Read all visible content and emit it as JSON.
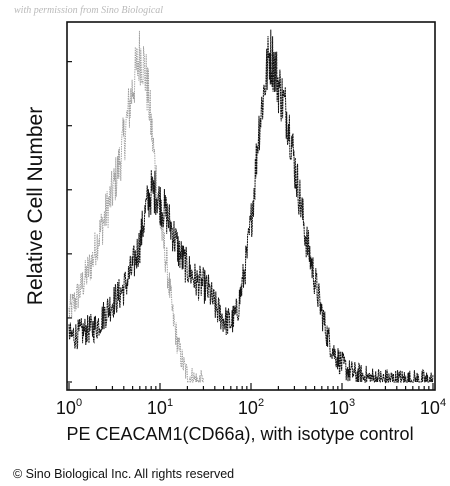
{
  "watermark": "with permission from Sino Biological",
  "copyright": "© Sino Biological Inc. All rights reserved",
  "chart_data": {
    "type": "area",
    "title": "",
    "xlabel": "PE CEACAM1(CD66a), with isotype control",
    "ylabel": "Relative Cell Number",
    "x_scale": "log",
    "xlim": [
      1,
      10000
    ],
    "ylim": [
      0,
      1
    ],
    "x_ticks": [
      {
        "base": "10",
        "exp": "0",
        "value": 1
      },
      {
        "base": "10",
        "exp": "1",
        "value": 10
      },
      {
        "base": "10",
        "exp": "2",
        "value": 100
      },
      {
        "base": "10",
        "exp": "3",
        "value": 1000
      },
      {
        "base": "10",
        "exp": "4",
        "value": 10000
      }
    ],
    "y_ticks_labeled": false,
    "grid": false,
    "legend": "none",
    "series": [
      {
        "role": "isotype control",
        "color": "#9a9a9a",
        "x": [
          1.0,
          1.2,
          1.5,
          1.8,
          2.0,
          2.5,
          3.0,
          3.5,
          4.0,
          4.5,
          5.0,
          5.5,
          6.0,
          6.5,
          7.0,
          7.5,
          8.0,
          9.0,
          10.0,
          11.0,
          12.0,
          13.0,
          14.0,
          16.0,
          18.0,
          20.0,
          23.0,
          26.0,
          30.0
        ],
        "y": [
          0.2,
          0.24,
          0.3,
          0.35,
          0.4,
          0.48,
          0.55,
          0.62,
          0.7,
          0.78,
          0.85,
          0.9,
          0.95,
          0.93,
          0.88,
          0.82,
          0.74,
          0.6,
          0.47,
          0.4,
          0.33,
          0.25,
          0.18,
          0.1,
          0.05,
          0.02,
          0.01,
          0.0,
          0.0
        ]
      },
      {
        "role": "PE CEACAM1(CD66a)",
        "color": "#111111",
        "x": [
          1.0,
          1.3,
          1.6,
          2.0,
          2.5,
          3.0,
          3.5,
          4.0,
          5.0,
          6.0,
          7.0,
          8.0,
          9.0,
          10.0,
          11.0,
          12.0,
          14.0,
          16.0,
          18.0,
          20.0,
          25.0,
          30.0,
          35.0,
          40.0,
          50.0,
          60.0,
          70.0,
          80.0,
          90.0,
          100.0,
          110.0,
          120.0,
          140.0,
          160.0,
          180.0,
          200.0,
          220.0,
          250.0,
          280.0,
          300.0,
          350.0,
          400.0,
          500.0,
          600.0,
          700.0,
          800.0,
          1000.0,
          1200.0,
          1500.0,
          2000.0,
          3000.0,
          5000.0,
          10000.0
        ],
        "y": [
          0.13,
          0.14,
          0.15,
          0.16,
          0.2,
          0.23,
          0.25,
          0.27,
          0.33,
          0.4,
          0.5,
          0.55,
          0.55,
          0.52,
          0.5,
          0.48,
          0.43,
          0.38,
          0.35,
          0.33,
          0.29,
          0.28,
          0.26,
          0.22,
          0.18,
          0.17,
          0.2,
          0.28,
          0.36,
          0.46,
          0.58,
          0.72,
          0.85,
          0.95,
          0.92,
          0.86,
          0.82,
          0.77,
          0.7,
          0.63,
          0.52,
          0.42,
          0.3,
          0.2,
          0.13,
          0.09,
          0.05,
          0.03,
          0.02,
          0.01,
          0.005,
          0.003,
          0.0
        ]
      }
    ]
  }
}
